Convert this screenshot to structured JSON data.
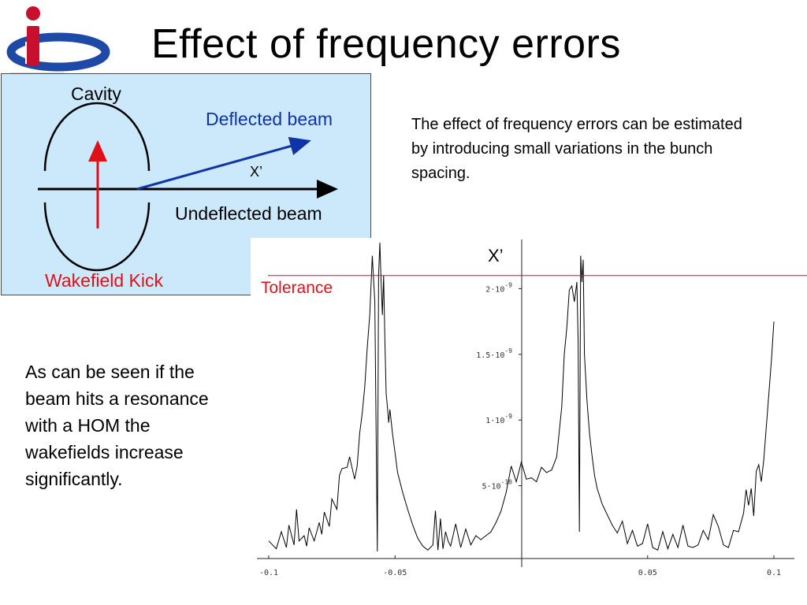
{
  "slide": {
    "title": "Effect of frequency errors",
    "description": "The effect of frequency errors can be estimated by introducing small variations in the bunch spacing.",
    "note": "As can be seen if the beam hits a resonance with a HOM the wakefields increase significantly."
  },
  "diagram": {
    "cavity_label": "Cavity",
    "deflected_label": "Deflected beam",
    "x_prime_label": "X’",
    "undeflected_label": "Undeflected beam",
    "kick_label": "Wakefield Kick",
    "colors": {
      "panel": "#cce9fb",
      "deflected": "#1034a6",
      "kick": "#e0101a"
    }
  },
  "chart_data": {
    "type": "line",
    "ylabel": "X’",
    "annotation": "Tolerance",
    "tolerance_value": 2.1e-09,
    "xlim": [
      -0.1,
      0.1
    ],
    "ylim": [
      0,
      2.35e-09
    ],
    "x_ticks": [
      {
        "value": -0.1,
        "label": "-0.1"
      },
      {
        "value": -0.05,
        "label": "-0.05"
      },
      {
        "value": 0.05,
        "label": "0.05"
      },
      {
        "value": 0.1,
        "label": "0.1"
      }
    ],
    "y_ticks": [
      {
        "value": 5e-10,
        "mantissa": "5",
        "exp": "-10"
      },
      {
        "value": 1e-09,
        "mantissa": "1",
        "exp": "-9"
      },
      {
        "value": 1.5e-09,
        "mantissa": "1.5",
        "exp": "-9"
      },
      {
        "value": 2e-09,
        "mantissa": "2",
        "exp": "-9"
      }
    ],
    "series": [
      {
        "x": [
          -0.1,
          -0.097,
          -0.095,
          -0.093,
          -0.092,
          -0.09,
          -0.089,
          -0.088,
          -0.086,
          -0.085,
          -0.084,
          -0.082,
          -0.08,
          -0.079,
          -0.078,
          -0.076,
          -0.075,
          -0.073,
          -0.072,
          -0.071,
          -0.069,
          -0.068,
          -0.066,
          -0.065,
          -0.064,
          -0.063,
          -0.062,
          -0.061,
          -0.06,
          -0.059,
          -0.058,
          -0.057,
          -0.0565,
          -0.056,
          -0.0555,
          -0.055,
          -0.0545,
          -0.054,
          -0.0535,
          -0.053,
          -0.0525,
          -0.052,
          -0.051,
          -0.05,
          -0.049,
          -0.047,
          -0.045,
          -0.043,
          -0.041,
          -0.039,
          -0.037,
          -0.035,
          -0.034,
          -0.033,
          -0.032,
          -0.031,
          -0.03,
          -0.029,
          -0.028,
          -0.026,
          -0.024,
          -0.022,
          -0.02,
          -0.018,
          -0.016,
          -0.014,
          -0.012,
          -0.01,
          -0.008,
          -0.006,
          -0.004,
          -0.002,
          0.0,
          0.002,
          0.004,
          0.006,
          0.008,
          0.01,
          0.012,
          0.014,
          0.016,
          0.017,
          0.018,
          0.019,
          0.02,
          0.021,
          0.022,
          0.0225,
          0.023,
          0.0235,
          0.024,
          0.0245,
          0.025,
          0.026,
          0.027,
          0.028,
          0.029,
          0.03,
          0.032,
          0.034,
          0.036,
          0.038,
          0.04,
          0.042,
          0.044,
          0.046,
          0.048,
          0.05,
          0.052,
          0.054,
          0.056,
          0.058,
          0.06,
          0.062,
          0.064,
          0.066,
          0.068,
          0.07,
          0.072,
          0.074,
          0.076,
          0.078,
          0.08,
          0.082,
          0.084,
          0.086,
          0.088,
          0.089,
          0.09,
          0.091,
          0.092,
          0.093,
          0.094,
          0.095,
          0.096,
          0.097,
          0.098,
          0.099,
          0.1
        ],
        "y": [
          8e-11,
          2e-11,
          1.5e-10,
          3e-11,
          2e-10,
          5e-11,
          3.2e-10,
          8e-11,
          1.2e-10,
          4e-11,
          1.8e-10,
          8e-11,
          2.2e-10,
          1.3e-10,
          3e-10,
          1.9e-10,
          4e-10,
          3.2e-10,
          5.8e-10,
          6.3e-10,
          6.4e-10,
          7.2e-10,
          5.5e-10,
          6.5e-10,
          9e-10,
          1.05e-09,
          1.25e-09,
          1.55e-09,
          1.8e-09,
          2.25e-09,
          1.9e-09,
          0.0,
          2.1e-09,
          2.35e-09,
          2.05e-09,
          1.8e-09,
          2.1e-09,
          1.6e-09,
          1.2e-09,
          1.1e-09,
          9.8e-10,
          1.08e-09,
          9e-10,
          7.5e-10,
          6e-10,
          4.5e-10,
          3.2e-10,
          2e-10,
          1e-10,
          4e-11,
          1e-11,
          5e-11,
          3.1e-10,
          1e-11,
          2.5e-10,
          2e-11,
          1.5e-10,
          8e-11,
          4e-11,
          2.1e-10,
          3e-11,
          1.7e-10,
          5e-11,
          1.2e-10,
          9e-11,
          1.2e-10,
          1.5e-10,
          2.2e-10,
          3.1e-10,
          4.5e-10,
          6.5e-10,
          5.3e-10,
          6.8e-10,
          5.5e-10,
          5.6e-10,
          5.3e-10,
          6.4e-10,
          6e-10,
          6.2e-10,
          7.2e-10,
          1.1e-09,
          1.5e-09,
          1.7e-09,
          1.99e-09,
          2.02e-09,
          1.9e-09,
          2.05e-09,
          1.6e-09,
          1.5e-10,
          2.25e-09,
          2.05e-09,
          2.22e-09,
          1.5e-09,
          1.15e-09,
          9e-10,
          7.3e-10,
          5.8e-10,
          4.8e-10,
          3.6e-10,
          2.8e-10,
          2e-10,
          1.4e-10,
          2.3e-10,
          6e-11,
          1.6e-10,
          4e-11,
          6e-11,
          2.1e-10,
          3e-11,
          1e-11,
          1.5e-10,
          2e-11,
          1.3e-10,
          3e-11,
          2e-10,
          4e-11,
          3e-11,
          5e-11,
          1.6e-10,
          9e-11,
          2.8e-10,
          1.9e-10,
          5e-11,
          3e-11,
          1.6e-10,
          1.5e-10,
          2.9e-10,
          4.7e-10,
          3.5e-10,
          4.8e-10,
          2.7e-10,
          6.1e-10,
          6.6e-10,
          5.3e-10,
          7e-10,
          9.5e-10,
          1.2e-09,
          1.45e-09,
          1.75e-09
        ]
      }
    ]
  }
}
